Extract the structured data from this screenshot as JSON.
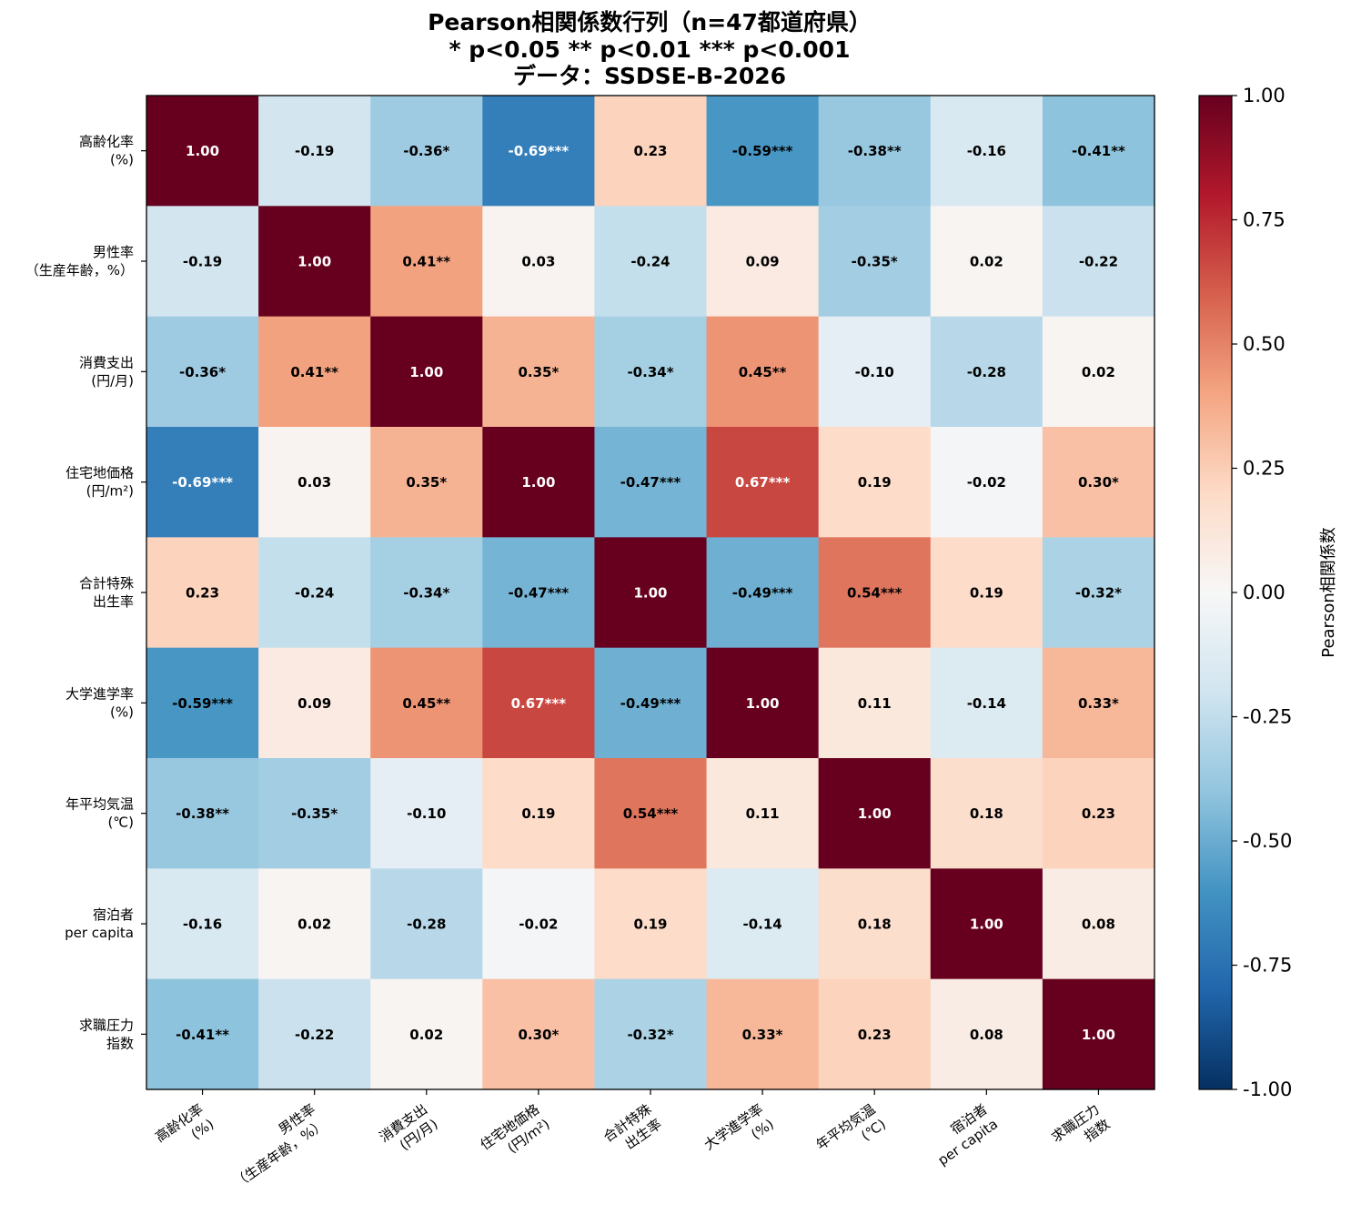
{
  "chart_data": {
    "type": "heatmap",
    "title_lines": [
      "Pearson相関係数行列（n=47都道府県）",
      "* p<0.05  ** p<0.01  *** p<0.001",
      "データ：SSDSE-B-2026"
    ],
    "row_labels": [
      [
        "高齢化率",
        "(%)"
      ],
      [
        "男性率",
        "（生産年齢，%）"
      ],
      [
        "消費支出",
        "(円/月)"
      ],
      [
        "住宅地価格",
        "(円/m²)"
      ],
      [
        "合計特殊",
        "出生率"
      ],
      [
        "大学進学率",
        "(%)"
      ],
      [
        "年平均気温",
        "(℃)"
      ],
      [
        "宿泊者",
        "per capita"
      ],
      [
        "求職圧力",
        "指数"
      ]
    ],
    "col_labels": [
      [
        "高齢化率",
        "(%)"
      ],
      [
        "男性率",
        "（生産年齢，%）"
      ],
      [
        "消費支出",
        "(円/月)"
      ],
      [
        "住宅地価格",
        "(円/m²)"
      ],
      [
        "合計特殊",
        "出生率"
      ],
      [
        "大学進学率",
        "(%)"
      ],
      [
        "年平均気温",
        "(℃)"
      ],
      [
        "宿泊者",
        "per capita"
      ],
      [
        "求職圧力",
        "指数"
      ]
    ],
    "values": [
      [
        1.0,
        -0.19,
        -0.36,
        -0.69,
        0.23,
        -0.59,
        -0.38,
        -0.16,
        -0.41
      ],
      [
        -0.19,
        1.0,
        0.41,
        0.03,
        -0.24,
        0.09,
        -0.35,
        0.02,
        -0.22
      ],
      [
        -0.36,
        0.41,
        1.0,
        0.35,
        -0.34,
        0.45,
        -0.1,
        -0.28,
        0.02
      ],
      [
        -0.69,
        0.03,
        0.35,
        1.0,
        -0.47,
        0.67,
        0.19,
        -0.02,
        0.3
      ],
      [
        0.23,
        -0.24,
        -0.34,
        -0.47,
        1.0,
        -0.49,
        0.54,
        0.19,
        -0.32
      ],
      [
        -0.59,
        0.09,
        0.45,
        0.67,
        -0.49,
        1.0,
        0.11,
        -0.14,
        0.33
      ],
      [
        -0.38,
        -0.35,
        -0.1,
        0.19,
        0.54,
        0.11,
        1.0,
        0.18,
        0.23
      ],
      [
        -0.16,
        0.02,
        -0.28,
        -0.02,
        0.19,
        -0.14,
        0.18,
        1.0,
        0.08
      ],
      [
        -0.41,
        -0.22,
        0.02,
        0.3,
        -0.32,
        0.33,
        0.23,
        0.08,
        1.0
      ]
    ],
    "cell_labels": [
      [
        "1.00",
        "-0.19",
        "-0.36*",
        "-0.69***",
        "0.23",
        "-0.59***",
        "-0.38**",
        "-0.16",
        "-0.41**"
      ],
      [
        "-0.19",
        "1.00",
        "0.41**",
        "0.03",
        "-0.24",
        "0.09",
        "-0.35*",
        "0.02",
        "-0.22"
      ],
      [
        "-0.36*",
        "0.41**",
        "1.00",
        "0.35*",
        "-0.34*",
        "0.45**",
        "-0.10",
        "-0.28",
        "0.02"
      ],
      [
        "-0.69***",
        "0.03",
        "0.35*",
        "1.00",
        "-0.47***",
        "0.67***",
        "0.19",
        "-0.02",
        "0.30*"
      ],
      [
        "0.23",
        "-0.24",
        "-0.34*",
        "-0.47***",
        "1.00",
        "-0.49***",
        "0.54***",
        "0.19",
        "-0.32*"
      ],
      [
        "-0.59***",
        "0.09",
        "0.45**",
        "0.67***",
        "-0.49***",
        "1.00",
        "0.11",
        "-0.14",
        "0.33*"
      ],
      [
        "-0.38**",
        "-0.35*",
        "-0.10",
        "0.19",
        "0.54***",
        "0.11",
        "1.00",
        "0.18",
        "0.23"
      ],
      [
        "-0.16",
        "0.02",
        "-0.28",
        "-0.02",
        "0.19",
        "-0.14",
        "0.18",
        "1.00",
        "0.08"
      ],
      [
        "-0.41**",
        "-0.22",
        "0.02",
        "0.30*",
        "-0.32*",
        "0.33*",
        "0.23",
        "0.08",
        "1.00"
      ]
    ],
    "colorbar": {
      "label": "Pearson相関係数",
      "range": [
        -1.0,
        1.0
      ],
      "ticks": [
        "1.00",
        "0.75",
        "0.50",
        "0.25",
        "0.00",
        "-0.25",
        "-0.50",
        "-0.75",
        "-1.00"
      ],
      "tick_values": [
        1.0,
        0.75,
        0.5,
        0.25,
        0.0,
        -0.25,
        -0.5,
        -0.75,
        -1.0
      ],
      "colormap": "RdBu_r",
      "colormap_stops": [
        "#053061",
        "#2166ac",
        "#4393c3",
        "#92c5de",
        "#d1e5f0",
        "#f7f7f7",
        "#fddbc7",
        "#f4a582",
        "#d6604d",
        "#b2182b",
        "#67001f"
      ]
    }
  }
}
